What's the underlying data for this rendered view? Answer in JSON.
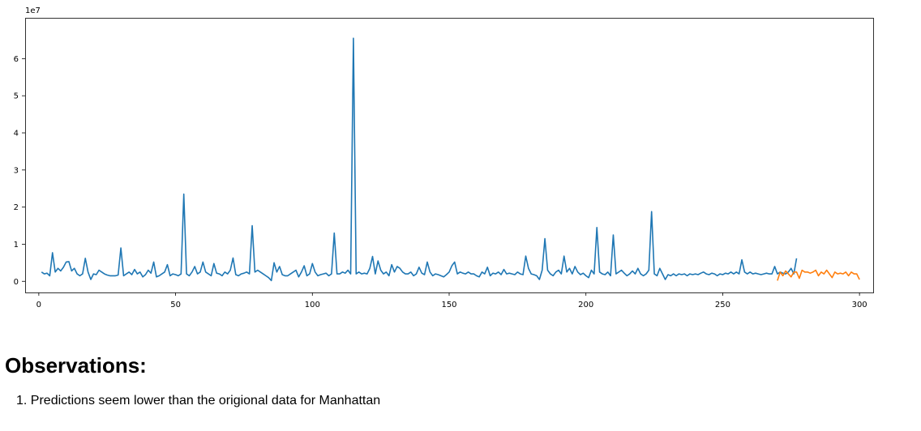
{
  "chart_data": {
    "type": "line",
    "title": "",
    "xlabel": "",
    "ylabel": "",
    "offset_label": "1e7",
    "xlim": [
      -5,
      305
    ],
    "ylim": [
      -0.3,
      7.1
    ],
    "xticks": [
      0,
      50,
      100,
      150,
      200,
      250,
      300
    ],
    "yticks": [
      0,
      1,
      2,
      3,
      4,
      5,
      6
    ],
    "grid": false,
    "legend": "none",
    "series": [
      {
        "color": "#1f77b4",
        "x_start": 1,
        "values": [
          0.25,
          0.2,
          0.22,
          0.15,
          0.77,
          0.25,
          0.35,
          0.28,
          0.38,
          0.52,
          0.53,
          0.28,
          0.35,
          0.2,
          0.15,
          0.2,
          0.62,
          0.25,
          0.05,
          0.2,
          0.18,
          0.3,
          0.25,
          0.2,
          0.17,
          0.15,
          0.15,
          0.15,
          0.17,
          0.9,
          0.15,
          0.2,
          0.25,
          0.18,
          0.32,
          0.2,
          0.25,
          0.12,
          0.18,
          0.3,
          0.22,
          0.52,
          0.12,
          0.15,
          0.2,
          0.25,
          0.45,
          0.15,
          0.2,
          0.18,
          0.15,
          0.2,
          2.35,
          0.2,
          0.15,
          0.25,
          0.4,
          0.2,
          0.25,
          0.52,
          0.25,
          0.2,
          0.15,
          0.48,
          0.22,
          0.2,
          0.15,
          0.25,
          0.2,
          0.3,
          0.63,
          0.18,
          0.15,
          0.2,
          0.22,
          0.25,
          0.2,
          1.5,
          0.25,
          0.3,
          0.25,
          0.2,
          0.15,
          0.1,
          0.02,
          0.5,
          0.25,
          0.4,
          0.18,
          0.15,
          0.15,
          0.2,
          0.25,
          0.3,
          0.12,
          0.25,
          0.42,
          0.15,
          0.2,
          0.48,
          0.25,
          0.15,
          0.18,
          0.2,
          0.22,
          0.15,
          0.2,
          1.3,
          0.2,
          0.2,
          0.25,
          0.22,
          0.3,
          0.2,
          6.55,
          0.2,
          0.25,
          0.2,
          0.22,
          0.2,
          0.35,
          0.67,
          0.2,
          0.55,
          0.3,
          0.2,
          0.25,
          0.15,
          0.45,
          0.25,
          0.4,
          0.35,
          0.25,
          0.2,
          0.2,
          0.25,
          0.15,
          0.2,
          0.38,
          0.22,
          0.18,
          0.52,
          0.25,
          0.15,
          0.2,
          0.18,
          0.15,
          0.12,
          0.18,
          0.25,
          0.42,
          0.52,
          0.2,
          0.25,
          0.22,
          0.2,
          0.25,
          0.2,
          0.2,
          0.15,
          0.12,
          0.25,
          0.2,
          0.38,
          0.15,
          0.22,
          0.2,
          0.25,
          0.18,
          0.32,
          0.2,
          0.22,
          0.2,
          0.18,
          0.25,
          0.2,
          0.18,
          0.68,
          0.35,
          0.2,
          0.18,
          0.15,
          0.05,
          0.3,
          1.15,
          0.3,
          0.2,
          0.15,
          0.25,
          0.3,
          0.2,
          0.68,
          0.25,
          0.35,
          0.2,
          0.4,
          0.25,
          0.18,
          0.22,
          0.15,
          0.1,
          0.3,
          0.2,
          1.45,
          0.25,
          0.2,
          0.18,
          0.25,
          0.15,
          1.25,
          0.2,
          0.25,
          0.3,
          0.22,
          0.15,
          0.2,
          0.28,
          0.2,
          0.35,
          0.2,
          0.15,
          0.2,
          0.3,
          1.88,
          0.2,
          0.15,
          0.35,
          0.2,
          0.05,
          0.18,
          0.15,
          0.2,
          0.15,
          0.2,
          0.18,
          0.2,
          0.15,
          0.2,
          0.18,
          0.2,
          0.18,
          0.22,
          0.25,
          0.2,
          0.18,
          0.22,
          0.2,
          0.15,
          0.2,
          0.18,
          0.22,
          0.2,
          0.25,
          0.2,
          0.25,
          0.2,
          0.58,
          0.25,
          0.2,
          0.25,
          0.2,
          0.22,
          0.2,
          0.18,
          0.2,
          0.22,
          0.2,
          0.2,
          0.4,
          0.2,
          0.25,
          0.22,
          0.2,
          0.25,
          0.35,
          0.2,
          0.62
        ]
      },
      {
        "color": "#ff7f0e",
        "x_start": 270,
        "values": [
          0.02,
          0.25,
          0.15,
          0.28,
          0.2,
          0.12,
          0.25,
          0.25,
          0.08,
          0.3,
          0.25,
          0.25,
          0.22,
          0.25,
          0.3,
          0.15,
          0.25,
          0.2,
          0.3,
          0.2,
          0.1,
          0.25,
          0.2,
          0.22,
          0.2,
          0.25,
          0.15,
          0.25,
          0.2,
          0.2,
          0.05
        ]
      }
    ]
  },
  "observations": {
    "heading": "Observations:",
    "items": [
      "1. Predictions seem lower than the origional data for Manhattan"
    ]
  }
}
